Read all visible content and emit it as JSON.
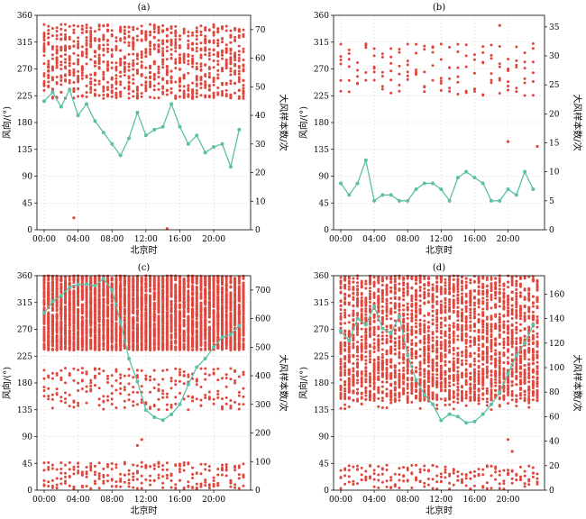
{
  "colors": {
    "scatter": "#e0463c",
    "line": "#5cbfa6",
    "grid": "#d4d4d4"
  },
  "chart_data": [
    {
      "type": "scatter+line",
      "title": "(a)",
      "xlabel": "北京时",
      "ylabel": "风向/(°)",
      "ylabel_right": "大风样本数/次",
      "xticks": [
        "00:00",
        "04:00",
        "08:00",
        "12:00",
        "16:00",
        "20:00"
      ],
      "yticks": [
        0,
        45,
        90,
        135,
        180,
        225,
        270,
        315,
        360
      ],
      "ylim": [
        0,
        360
      ],
      "yticks_right": [
        0,
        10,
        20,
        30,
        40,
        50,
        60,
        70
      ],
      "ylim_right": [
        0,
        75
      ],
      "grid": true,
      "scatter_density": "medium",
      "scatter_outliers": [
        [
          3.5,
          20
        ],
        [
          14.5,
          2
        ]
      ],
      "hours": [
        0,
        1,
        2,
        3,
        4,
        5,
        6,
        7,
        8,
        9,
        10,
        11,
        12,
        13,
        14,
        15,
        16,
        17,
        18,
        19,
        20,
        21,
        22,
        23
      ],
      "counts": [
        45,
        48,
        43,
        49,
        40,
        44,
        38,
        34,
        30,
        26,
        32,
        41,
        33,
        35,
        36,
        44,
        36,
        30,
        33,
        27,
        29,
        30,
        22,
        35
      ],
      "dir_band": [
        220,
        345
      ]
    },
    {
      "type": "scatter+line",
      "title": "(b)",
      "xlabel": "北京时",
      "ylabel": "风向/(°)",
      "ylabel_right": "大风样本数/次",
      "xticks": [
        "00:00",
        "04:00",
        "08:00",
        "12:00",
        "16:00",
        "20:00"
      ],
      "yticks": [
        0,
        45,
        90,
        135,
        180,
        225,
        270,
        315,
        360
      ],
      "ylim": [
        0,
        360
      ],
      "yticks_right": [
        0,
        5,
        10,
        15,
        20,
        25,
        30,
        35
      ],
      "ylim_right": [
        0,
        37
      ],
      "grid": true,
      "scatter_density": "sparse",
      "scatter_outliers": [
        [
          20,
          148
        ],
        [
          23.5,
          140
        ],
        [
          19,
          343
        ]
      ],
      "hours": [
        0,
        1,
        2,
        3,
        4,
        5,
        6,
        7,
        8,
        9,
        10,
        11,
        12,
        13,
        14,
        15,
        16,
        17,
        18,
        19,
        20,
        21,
        22,
        23
      ],
      "counts": [
        8,
        6,
        8,
        12,
        5,
        6,
        6,
        5,
        5,
        7,
        8,
        8,
        7,
        5,
        9,
        10,
        9,
        8,
        5,
        5,
        7,
        6,
        10,
        7
      ],
      "dir_band": [
        225,
        315
      ]
    },
    {
      "type": "scatter+line",
      "title": "(c)",
      "xlabel": "北京时",
      "ylabel": "风向/(°)",
      "ylabel_right": "大风样本数/次",
      "xticks": [
        "00:00",
        "04:00",
        "08:00",
        "12:00",
        "16:00",
        "20:00"
      ],
      "yticks": [
        0,
        45,
        90,
        135,
        180,
        225,
        270,
        315,
        360
      ],
      "ylim": [
        0,
        360
      ],
      "yticks_right": [
        0,
        100,
        200,
        300,
        400,
        500,
        600,
        700
      ],
      "ylim_right": [
        0,
        750
      ],
      "grid": true,
      "scatter_density": "very-dense",
      "scatter_outliers": [
        [
          11,
          75
        ],
        [
          11.5,
          85
        ]
      ],
      "hours": [
        0,
        1,
        2,
        3,
        4,
        5,
        6,
        7,
        8,
        9,
        10,
        11,
        12,
        13,
        14,
        15,
        16,
        17,
        18,
        19,
        20,
        21,
        22,
        23
      ],
      "counts": [
        620,
        660,
        680,
        710,
        720,
        720,
        715,
        740,
        700,
        590,
        460,
        380,
        280,
        255,
        245,
        265,
        300,
        370,
        430,
        460,
        500,
        535,
        545,
        575
      ],
      "dir_band": [
        235,
        360
      ]
    },
    {
      "type": "scatter+line",
      "title": "(d)",
      "xlabel": "北京时",
      "ylabel": "风向/(°)",
      "ylabel_right": "大风样本数/次",
      "xticks": [
        "00:00",
        "04:00",
        "08:00",
        "12:00",
        "16:00",
        "20:00"
      ],
      "yticks": [
        0,
        45,
        90,
        135,
        180,
        225,
        270,
        315,
        360
      ],
      "ylim": [
        0,
        360
      ],
      "yticks_right": [
        0,
        20,
        40,
        60,
        80,
        100,
        120,
        140,
        160
      ],
      "ylim_right": [
        0,
        175
      ],
      "grid": true,
      "scatter_density": "dense",
      "scatter_outliers": [
        [
          20,
          85
        ],
        [
          20.5,
          65
        ]
      ],
      "hours": [
        0,
        1,
        2,
        3,
        4,
        5,
        6,
        7,
        8,
        9,
        10,
        11,
        12,
        13,
        14,
        15,
        16,
        17,
        18,
        19,
        20,
        21,
        22,
        23
      ],
      "counts": [
        130,
        122,
        140,
        135,
        150,
        132,
        128,
        142,
        110,
        90,
        78,
        70,
        57,
        62,
        60,
        55,
        56,
        62,
        70,
        80,
        95,
        110,
        120,
        135
      ],
      "dir_band": [
        150,
        360
      ]
    }
  ]
}
